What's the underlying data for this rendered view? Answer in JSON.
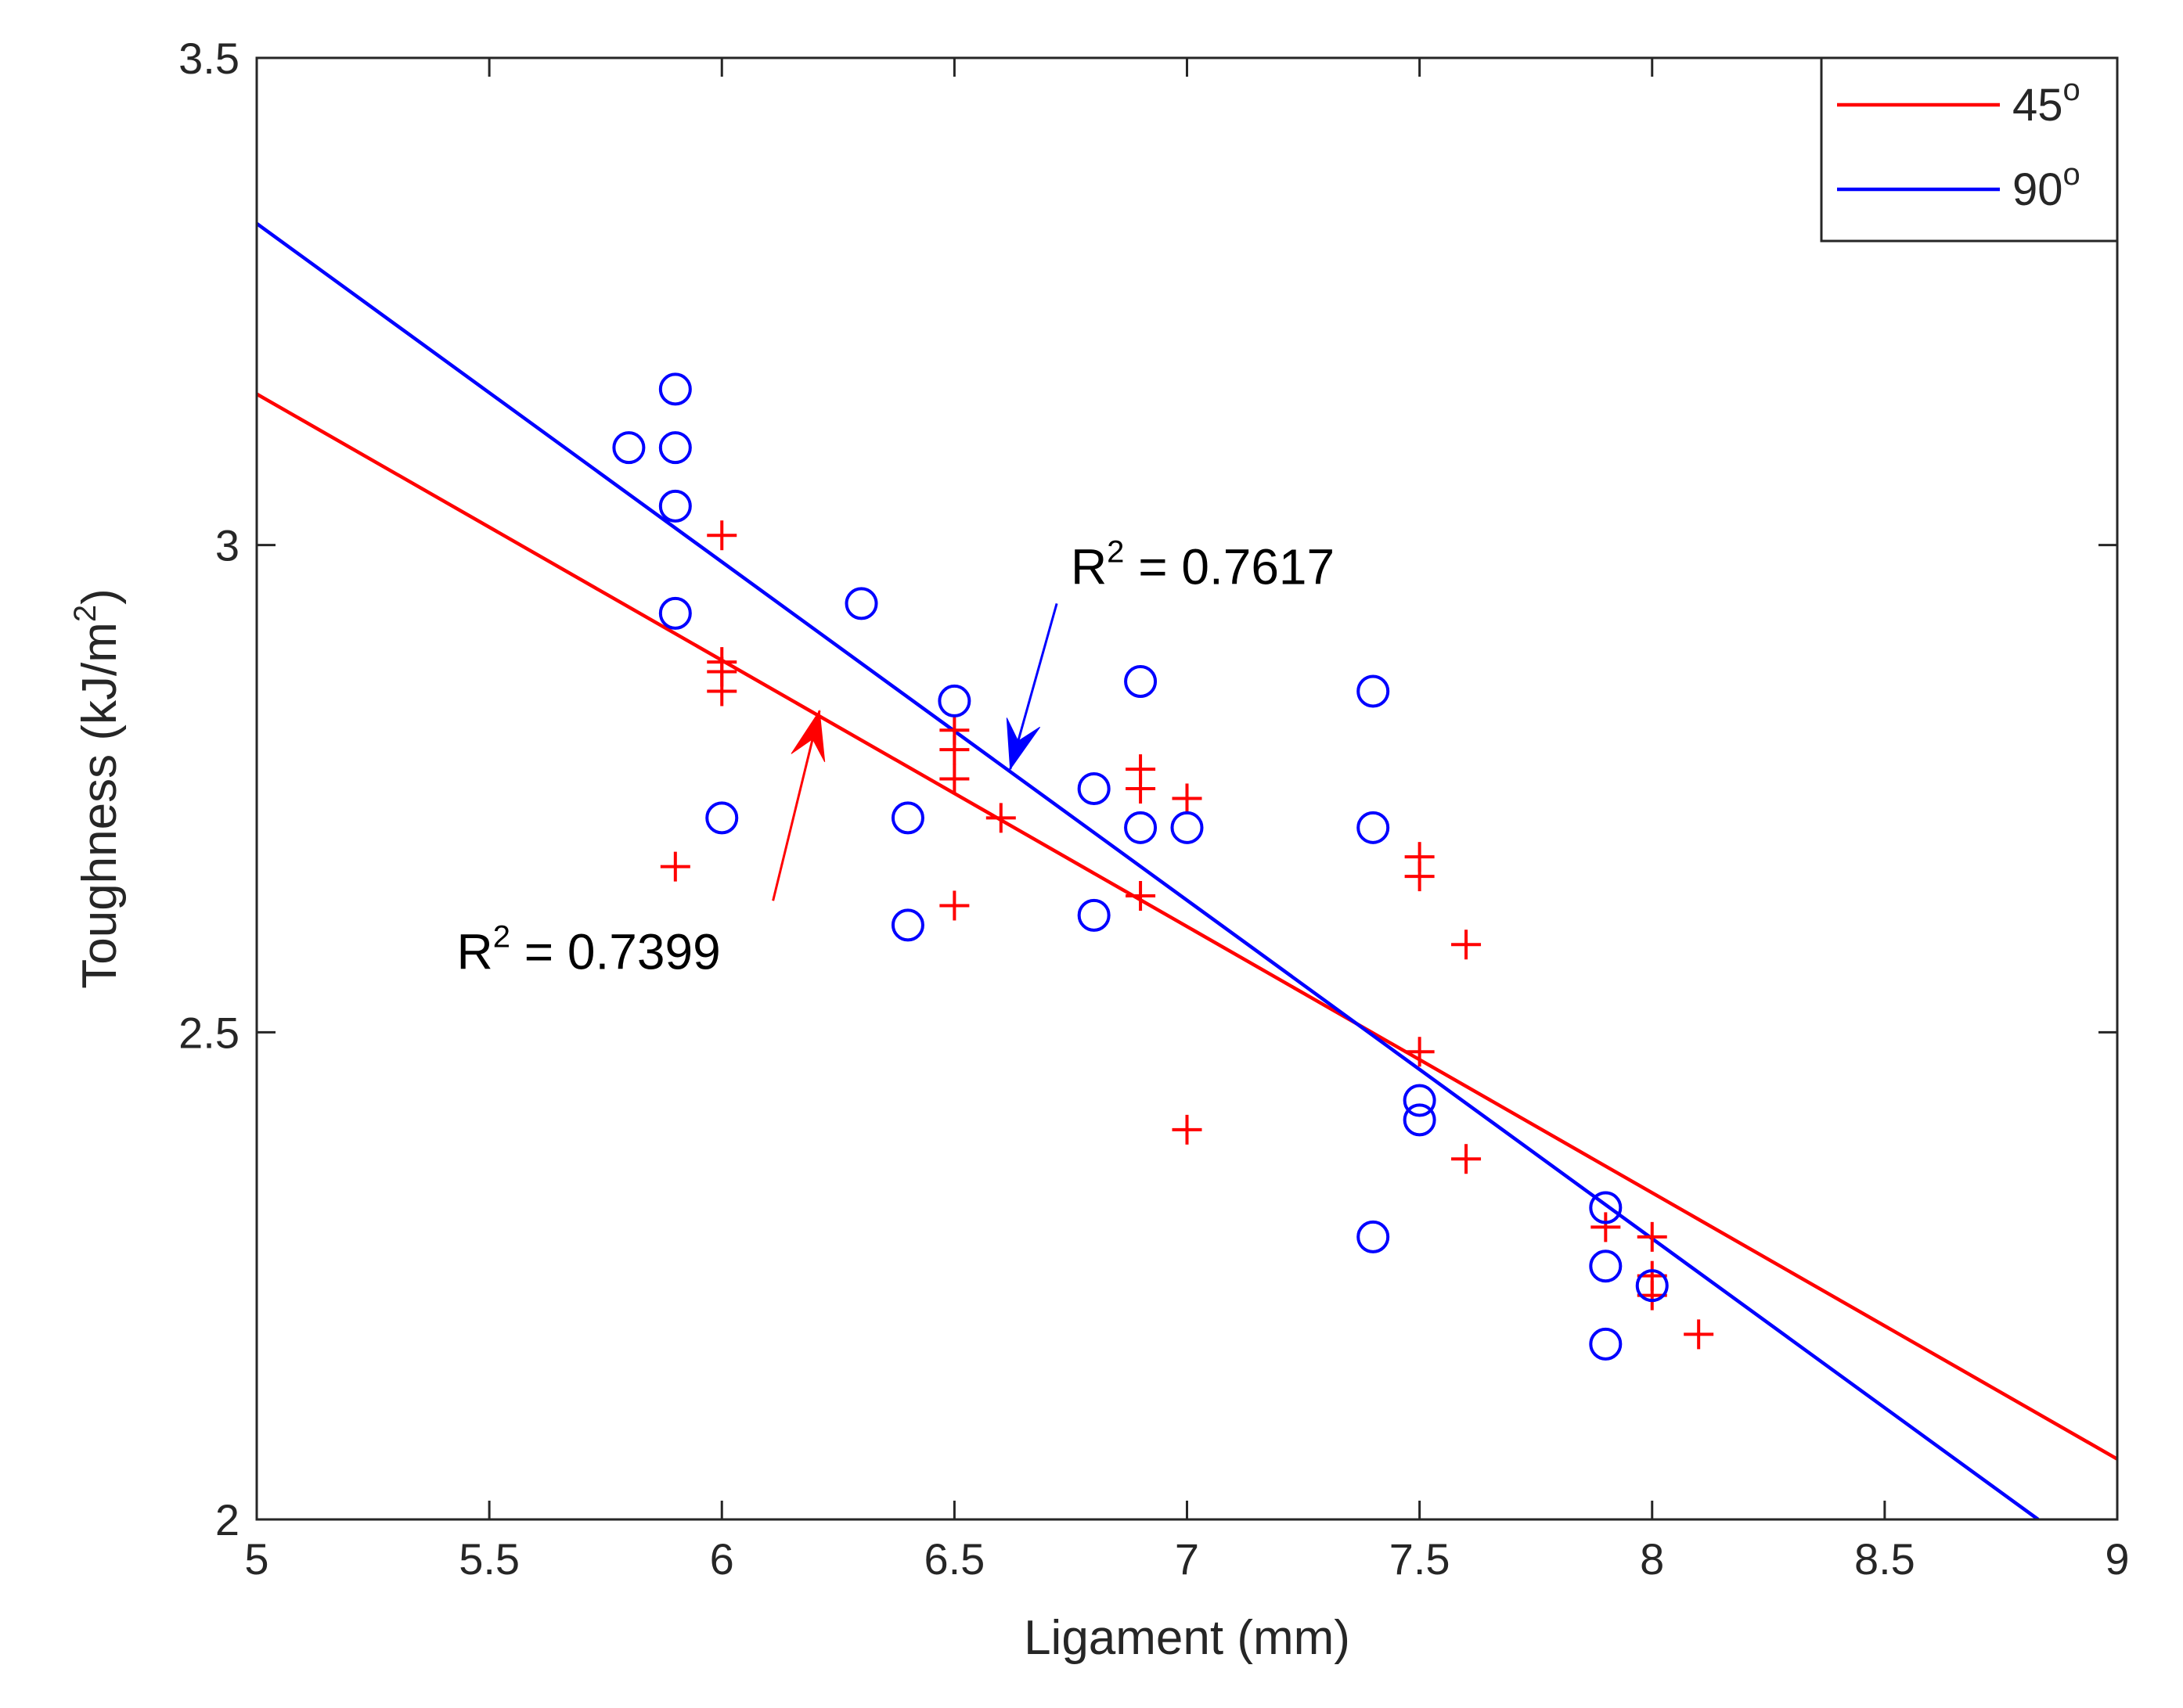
{
  "chart_data": {
    "type": "scatter",
    "xlabel": "Ligament (mm)",
    "ylabel_main": "Toughness (kJ/m",
    "ylabel_sup": "2",
    "ylabel_close": ")",
    "xlim": [
      5,
      9
    ],
    "ylim": [
      2,
      3.5
    ],
    "xticks": [
      5,
      5.5,
      6,
      6.5,
      7,
      7.5,
      8,
      8.5,
      9
    ],
    "yticks": [
      2,
      2.5,
      3,
      3.5
    ],
    "xtick_labels": [
      "5",
      "5.5",
      "6",
      "6.5",
      "7",
      "7.5",
      "8",
      "8.5",
      "9"
    ],
    "ytick_labels": [
      "2",
      "2.5",
      "3",
      "3.5"
    ],
    "grid": false,
    "legend_position": "top-right",
    "series": [
      {
        "name_main": "45",
        "name_sup": "o",
        "color": "#ff0000",
        "marker": "plus",
        "points": [
          [
            5.9,
            2.67
          ],
          [
            6.0,
            3.01
          ],
          [
            6.0,
            2.88
          ],
          [
            6.0,
            2.87
          ],
          [
            6.0,
            2.85
          ],
          [
            6.5,
            2.81
          ],
          [
            6.5,
            2.79
          ],
          [
            6.5,
            2.76
          ],
          [
            6.5,
            2.63
          ],
          [
            6.6,
            2.72
          ],
          [
            6.9,
            2.77
          ],
          [
            6.9,
            2.75
          ],
          [
            6.9,
            2.64
          ],
          [
            7.0,
            2.74
          ],
          [
            7.0,
            2.4
          ],
          [
            7.5,
            2.68
          ],
          [
            7.5,
            2.66
          ],
          [
            7.5,
            2.48
          ],
          [
            7.6,
            2.59
          ],
          [
            7.6,
            2.37
          ],
          [
            7.9,
            2.3
          ],
          [
            8.0,
            2.29
          ],
          [
            8.0,
            2.25
          ],
          [
            8.0,
            2.23
          ],
          [
            8.1,
            2.19
          ]
        ],
        "fit": {
          "x": [
            5,
            9
          ],
          "y": [
            3.155,
            2.062
          ]
        },
        "r2_label_main": "R",
        "r2_label_sup": "2",
        "r2_label_value": " = 0.7399",
        "arrow_tip": [
          6.21,
          2.83
        ],
        "arrow_tail": [
          6.11,
          2.635
        ],
        "label_anchor": [
          5.43,
          2.565
        ]
      },
      {
        "name_main": "90",
        "name_sup": "o",
        "color": "#0000ff",
        "marker": "circle",
        "points": [
          [
            5.8,
            3.1
          ],
          [
            5.9,
            3.16
          ],
          [
            5.9,
            3.1
          ],
          [
            5.9,
            3.04
          ],
          [
            5.9,
            2.93
          ],
          [
            6.0,
            2.72
          ],
          [
            6.3,
            2.94
          ],
          [
            6.4,
            2.72
          ],
          [
            6.4,
            2.61
          ],
          [
            6.5,
            2.84
          ],
          [
            6.8,
            2.75
          ],
          [
            6.8,
            2.62
          ],
          [
            6.9,
            2.86
          ],
          [
            6.9,
            2.71
          ],
          [
            7.0,
            2.71
          ],
          [
            7.4,
            2.85
          ],
          [
            7.4,
            2.71
          ],
          [
            7.4,
            2.29
          ],
          [
            7.5,
            2.43
          ],
          [
            7.5,
            2.41
          ],
          [
            7.9,
            2.32
          ],
          [
            7.9,
            2.26
          ],
          [
            7.9,
            2.18
          ],
          [
            8.0,
            2.24
          ]
        ],
        "fit": {
          "x": [
            5,
            8.83
          ],
          "y": [
            3.33,
            2.0
          ]
        },
        "r2_label_main": "R",
        "r2_label_sup": "2",
        "r2_label_value": " = 0.7617",
        "arrow_tip": [
          6.62,
          2.77
        ],
        "arrow_tail": [
          6.72,
          2.94
        ],
        "label_anchor": [
          6.75,
          2.96
        ]
      }
    ]
  }
}
